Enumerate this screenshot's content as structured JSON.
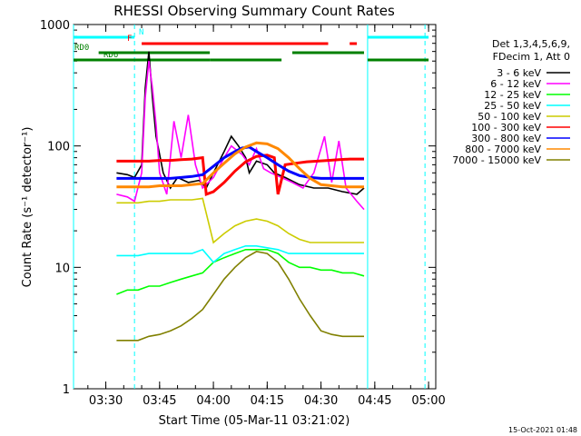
{
  "chart_data": {
    "type": "line",
    "title": "RHESSI Observing Summary Count Rates",
    "xlabel": "Start Time (05-Mar-11 03:21:02)",
    "ylabel": "Count Rate (s⁻¹ detector⁻¹)",
    "x_units": "HH:MM",
    "xlim": [
      "03:21",
      "05:02"
    ],
    "x_ticks": [
      "03:30",
      "03:45",
      "04:00",
      "04:15",
      "04:30",
      "04:45",
      "05:00"
    ],
    "y_scale": "log",
    "ylim": [
      1,
      1000
    ],
    "y_ticks": [
      "1",
      "10",
      "100",
      "1000"
    ],
    "legend": {
      "placement": "right",
      "header": [
        "Det 1,3,4,5,6,9,",
        "FDecim 1, Att 0"
      ]
    },
    "series": [
      {
        "name": "3 - 6 keV",
        "color": "#000000",
        "points": [
          [
            "03:33",
            60
          ],
          [
            "03:36",
            58
          ],
          [
            "03:38",
            55
          ],
          [
            "03:40",
            70
          ],
          [
            "03:41",
            300
          ],
          [
            "03:42",
            600
          ],
          [
            "03:43",
            250
          ],
          [
            "03:44",
            120
          ],
          [
            "03:46",
            60
          ],
          [
            "03:48",
            45
          ],
          [
            "03:50",
            55
          ],
          [
            "03:53",
            50
          ],
          [
            "03:56",
            52
          ],
          [
            "03:58",
            45
          ],
          [
            "04:00",
            60
          ],
          [
            "04:03",
            90
          ],
          [
            "04:05",
            120
          ],
          [
            "04:07",
            100
          ],
          [
            "04:09",
            80
          ],
          [
            "04:10",
            60
          ],
          [
            "04:12",
            75
          ],
          [
            "04:15",
            70
          ],
          [
            "04:17",
            60
          ],
          [
            "04:20",
            55
          ],
          [
            "04:24",
            48
          ],
          [
            "04:28",
            45
          ],
          [
            "04:32",
            45
          ],
          [
            "04:36",
            42
          ],
          [
            "04:40",
            40
          ],
          [
            "04:42",
            45
          ]
        ]
      },
      {
        "name": "6 - 12 keV",
        "color": "#ff00ff",
        "points": [
          [
            "03:33",
            40
          ],
          [
            "03:36",
            38
          ],
          [
            "03:38",
            35
          ],
          [
            "03:40",
            60
          ],
          [
            "03:41",
            250
          ],
          [
            "03:42",
            500
          ],
          [
            "03:43",
            300
          ],
          [
            "03:44",
            150
          ],
          [
            "03:45",
            60
          ],
          [
            "03:47",
            40
          ],
          [
            "03:49",
            160
          ],
          [
            "03:51",
            80
          ],
          [
            "03:53",
            180
          ],
          [
            "03:55",
            70
          ],
          [
            "03:57",
            45
          ],
          [
            "04:00",
            55
          ],
          [
            "04:03",
            80
          ],
          [
            "04:05",
            100
          ],
          [
            "04:08",
            85
          ],
          [
            "04:10",
            70
          ],
          [
            "04:12",
            95
          ],
          [
            "04:14",
            65
          ],
          [
            "04:16",
            60
          ],
          [
            "04:19",
            55
          ],
          [
            "04:22",
            50
          ],
          [
            "04:25",
            45
          ],
          [
            "04:28",
            60
          ],
          [
            "04:31",
            120
          ],
          [
            "04:33",
            50
          ],
          [
            "04:35",
            110
          ],
          [
            "04:37",
            45
          ],
          [
            "04:40",
            35
          ],
          [
            "04:42",
            30
          ]
        ]
      },
      {
        "name": "12 - 25 keV",
        "color": "#00ff00",
        "points": [
          [
            "03:33",
            6
          ],
          [
            "03:36",
            6.5
          ],
          [
            "03:39",
            6.5
          ],
          [
            "03:42",
            7
          ],
          [
            "03:45",
            7
          ],
          [
            "03:48",
            7.5
          ],
          [
            "03:51",
            8
          ],
          [
            "03:54",
            8.5
          ],
          [
            "03:57",
            9
          ],
          [
            "04:00",
            11
          ],
          [
            "04:03",
            12
          ],
          [
            "04:06",
            13
          ],
          [
            "04:09",
            14
          ],
          [
            "04:12",
            14
          ],
          [
            "04:15",
            14
          ],
          [
            "04:18",
            13
          ],
          [
            "04:21",
            11
          ],
          [
            "04:24",
            10
          ],
          [
            "04:27",
            10
          ],
          [
            "04:30",
            9.5
          ],
          [
            "04:33",
            9.5
          ],
          [
            "04:36",
            9
          ],
          [
            "04:39",
            9
          ],
          [
            "04:42",
            8.5
          ]
        ]
      },
      {
        "name": "25 - 50 keV",
        "color": "#00ffff",
        "points": [
          [
            "03:33",
            12.5
          ],
          [
            "03:36",
            12.5
          ],
          [
            "03:39",
            12.5
          ],
          [
            "03:42",
            13
          ],
          [
            "03:45",
            13
          ],
          [
            "03:48",
            13
          ],
          [
            "03:51",
            13
          ],
          [
            "03:54",
            13
          ],
          [
            "03:57",
            14
          ],
          [
            "04:00",
            11
          ],
          [
            "04:03",
            13
          ],
          [
            "04:06",
            14
          ],
          [
            "04:09",
            15
          ],
          [
            "04:12",
            15
          ],
          [
            "04:15",
            14.5
          ],
          [
            "04:18",
            14
          ],
          [
            "04:21",
            13
          ],
          [
            "04:24",
            13
          ],
          [
            "04:27",
            13
          ],
          [
            "04:30",
            13
          ],
          [
            "04:33",
            13
          ],
          [
            "04:36",
            13
          ],
          [
            "04:39",
            13
          ],
          [
            "04:42",
            13
          ]
        ]
      },
      {
        "name": "50 - 100 keV",
        "color": "#cccc00",
        "points": [
          [
            "03:33",
            34
          ],
          [
            "03:36",
            34
          ],
          [
            "03:39",
            34
          ],
          [
            "03:42",
            35
          ],
          [
            "03:45",
            35
          ],
          [
            "03:48",
            36
          ],
          [
            "03:51",
            36
          ],
          [
            "03:54",
            36
          ],
          [
            "03:57",
            37
          ],
          [
            "04:00",
            16
          ],
          [
            "04:03",
            19
          ],
          [
            "04:06",
            22
          ],
          [
            "04:09",
            24
          ],
          [
            "04:12",
            25
          ],
          [
            "04:15",
            24
          ],
          [
            "04:18",
            22
          ],
          [
            "04:21",
            19
          ],
          [
            "04:24",
            17
          ],
          [
            "04:27",
            16
          ],
          [
            "04:30",
            16
          ],
          [
            "04:33",
            16
          ],
          [
            "04:36",
            16
          ],
          [
            "04:39",
            16
          ],
          [
            "04:42",
            16
          ]
        ]
      },
      {
        "name": "100 - 300 keV",
        "color": "#ff0000",
        "points": [
          [
            "03:33",
            75
          ],
          [
            "03:36",
            75
          ],
          [
            "03:39",
            75
          ],
          [
            "03:42",
            75
          ],
          [
            "03:45",
            76
          ],
          [
            "03:48",
            76
          ],
          [
            "03:51",
            77
          ],
          [
            "03:54",
            78
          ],
          [
            "03:57",
            80
          ],
          [
            "03:58",
            40
          ],
          [
            "04:00",
            42
          ],
          [
            "04:03",
            50
          ],
          [
            "04:06",
            62
          ],
          [
            "04:09",
            74
          ],
          [
            "04:12",
            82
          ],
          [
            "04:15",
            84
          ],
          [
            "04:17",
            80
          ],
          [
            "04:18",
            40
          ],
          [
            "04:20",
            70
          ],
          [
            "04:23",
            72
          ],
          [
            "04:26",
            74
          ],
          [
            "04:29",
            75
          ],
          [
            "04:32",
            76
          ],
          [
            "04:35",
            77
          ],
          [
            "04:38",
            78
          ],
          [
            "04:42",
            78
          ]
        ]
      },
      {
        "name": "300 - 800 keV",
        "color": "#0000ff",
        "points": [
          [
            "03:33",
            54
          ],
          [
            "03:36",
            54
          ],
          [
            "03:39",
            54
          ],
          [
            "03:42",
            54
          ],
          [
            "03:45",
            54
          ],
          [
            "03:48",
            54
          ],
          [
            "03:51",
            55
          ],
          [
            "03:54",
            56
          ],
          [
            "03:57",
            58
          ],
          [
            "04:00",
            68
          ],
          [
            "04:03",
            80
          ],
          [
            "04:06",
            90
          ],
          [
            "04:08",
            96
          ],
          [
            "04:10",
            98
          ],
          [
            "04:12",
            90
          ],
          [
            "04:15",
            80
          ],
          [
            "04:18",
            70
          ],
          [
            "04:21",
            62
          ],
          [
            "04:24",
            57
          ],
          [
            "04:27",
            55
          ],
          [
            "04:30",
            54
          ],
          [
            "04:33",
            54
          ],
          [
            "04:36",
            54
          ],
          [
            "04:39",
            54
          ],
          [
            "04:42",
            54
          ]
        ]
      },
      {
        "name": "800 - 7000 keV",
        "color": "#ff8800",
        "points": [
          [
            "03:33",
            46
          ],
          [
            "03:36",
            46
          ],
          [
            "03:39",
            46
          ],
          [
            "03:42",
            46
          ],
          [
            "03:45",
            47
          ],
          [
            "03:48",
            47
          ],
          [
            "03:51",
            47
          ],
          [
            "03:54",
            48
          ],
          [
            "03:57",
            49
          ],
          [
            "04:00",
            60
          ],
          [
            "04:03",
            72
          ],
          [
            "04:06",
            86
          ],
          [
            "04:09",
            98
          ],
          [
            "04:12",
            106
          ],
          [
            "04:15",
            104
          ],
          [
            "04:18",
            95
          ],
          [
            "04:21",
            80
          ],
          [
            "04:24",
            65
          ],
          [
            "04:27",
            54
          ],
          [
            "04:30",
            48
          ],
          [
            "04:33",
            47
          ],
          [
            "04:36",
            46
          ],
          [
            "04:39",
            46
          ],
          [
            "04:42",
            46
          ]
        ]
      },
      {
        "name": "7000 - 15000 keV",
        "color": "#808000",
        "points": [
          [
            "03:33",
            2.5
          ],
          [
            "03:36",
            2.5
          ],
          [
            "03:39",
            2.5
          ],
          [
            "03:42",
            2.7
          ],
          [
            "03:45",
            2.8
          ],
          [
            "03:48",
            3
          ],
          [
            "03:51",
            3.3
          ],
          [
            "03:54",
            3.8
          ],
          [
            "03:57",
            4.5
          ],
          [
            "04:00",
            6
          ],
          [
            "04:03",
            8
          ],
          [
            "04:06",
            10
          ],
          [
            "04:09",
            12
          ],
          [
            "04:12",
            13.5
          ],
          [
            "04:15",
            13
          ],
          [
            "04:18",
            11
          ],
          [
            "04:21",
            8
          ],
          [
            "04:24",
            5.5
          ],
          [
            "04:27",
            4
          ],
          [
            "04:30",
            3
          ],
          [
            "04:33",
            2.8
          ],
          [
            "04:36",
            2.7
          ],
          [
            "04:39",
            2.7
          ],
          [
            "04:42",
            2.7
          ]
        ]
      }
    ],
    "vertical_lines": [
      {
        "time": "03:21",
        "color": "#00ffff",
        "style": "solid"
      },
      {
        "time": "03:38",
        "color": "#00ffff",
        "style": "dashed"
      },
      {
        "time": "04:43",
        "color": "#00ffff",
        "style": "solid"
      },
      {
        "time": "04:59",
        "color": "#00ffff",
        "style": "dashed"
      }
    ],
    "flag_bars": [
      {
        "label": "N",
        "color": "#00ffff",
        "level": 1,
        "segments": [
          [
            "03:21",
            "03:38"
          ],
          [
            "04:43",
            "05:00"
          ]
        ]
      },
      {
        "label": "F",
        "color": "#ff0000",
        "level": 2,
        "segments": [
          [
            "03:40",
            "04:32"
          ],
          [
            "04:38",
            "04:40"
          ]
        ]
      },
      {
        "label": "RD0",
        "color": "#008000",
        "level": 3,
        "segments": [
          [
            "03:28",
            "03:59"
          ],
          [
            "04:22",
            "04:42"
          ]
        ]
      },
      {
        "label": "RD6",
        "color": "#008000",
        "level": 4,
        "segments": [
          [
            "03:21",
            "03:59"
          ],
          [
            "03:59",
            "04:19"
          ],
          [
            "04:43",
            "05:00"
          ]
        ]
      }
    ]
  },
  "footer_timestamp": "15-Oct-2021 01:48"
}
